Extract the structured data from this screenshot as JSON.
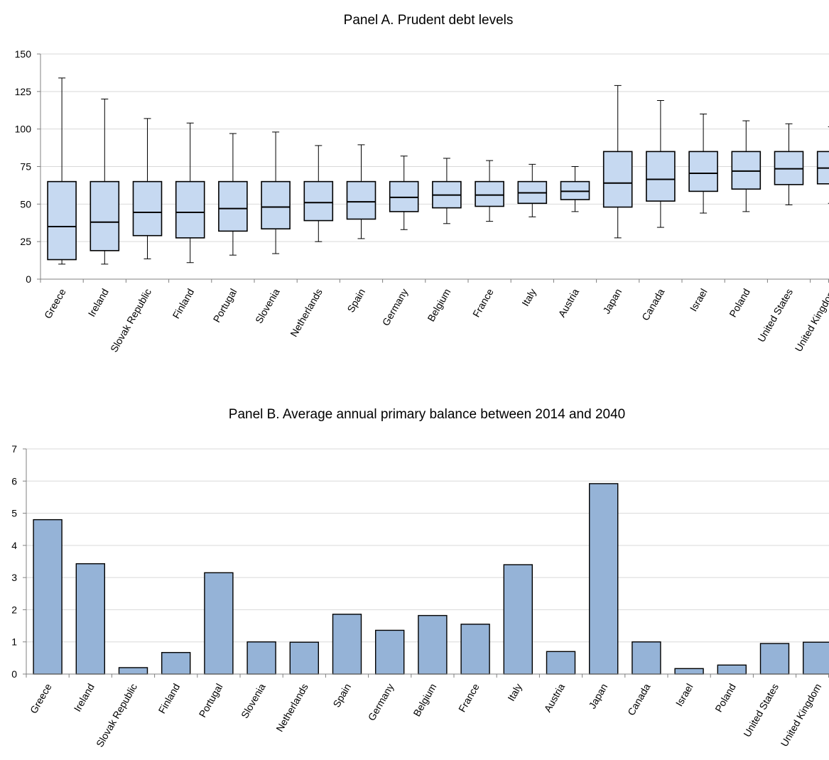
{
  "chart_data": [
    {
      "type": "box",
      "title": "Panel A.  Prudent debt levels",
      "xlabel": "",
      "ylabel": "",
      "ylim": [
        0,
        150
      ],
      "yticks": [
        0,
        25,
        50,
        75,
        100,
        125,
        150
      ],
      "grid": true,
      "categories": [
        "Greece",
        "Ireland",
        "Slovak Republic",
        "Finland",
        "Portugal",
        "Slovenia",
        "Netherlands",
        "Spain",
        "Germany",
        "Belgium",
        "France",
        "Italy",
        "Austria",
        "Japan",
        "Canada",
        "Israel",
        "Poland",
        "United States",
        "United Kingdom"
      ],
      "boxes": [
        {
          "min": 10,
          "q1": 13,
          "median": 35,
          "q3": 65,
          "max": 134
        },
        {
          "min": 10,
          "q1": 19,
          "median": 38,
          "q3": 65,
          "max": 120
        },
        {
          "min": 13.5,
          "q1": 29,
          "median": 44.5,
          "q3": 65,
          "max": 107
        },
        {
          "min": 11,
          "q1": 27.5,
          "median": 44.5,
          "q3": 65,
          "max": 104
        },
        {
          "min": 16,
          "q1": 32,
          "median": 47,
          "q3": 65,
          "max": 97
        },
        {
          "min": 17,
          "q1": 33.5,
          "median": 48,
          "q3": 65,
          "max": 98
        },
        {
          "min": 25,
          "q1": 39,
          "median": 51,
          "q3": 65,
          "max": 89
        },
        {
          "min": 27,
          "q1": 40,
          "median": 51.5,
          "q3": 65,
          "max": 89.5
        },
        {
          "min": 33,
          "q1": 45,
          "median": 54.5,
          "q3": 65,
          "max": 82
        },
        {
          "min": 37,
          "q1": 47.5,
          "median": 56,
          "q3": 65,
          "max": 80.5
        },
        {
          "min": 38.5,
          "q1": 48.5,
          "median": 56,
          "q3": 65,
          "max": 79
        },
        {
          "min": 41.5,
          "q1": 50.5,
          "median": 57.5,
          "q3": 65,
          "max": 76.5
        },
        {
          "min": 45,
          "q1": 53,
          "median": 58.5,
          "q3": 65,
          "max": 75
        },
        {
          "min": 27.5,
          "q1": 48,
          "median": 64,
          "q3": 85,
          "max": 129
        },
        {
          "min": 34.5,
          "q1": 52,
          "median": 66.5,
          "q3": 85,
          "max": 119
        },
        {
          "min": 44,
          "q1": 58.5,
          "median": 70.5,
          "q3": 85,
          "max": 110
        },
        {
          "min": 45,
          "q1": 60,
          "median": 72,
          "q3": 85,
          "max": 105.5
        },
        {
          "min": 49.5,
          "q1": 63,
          "median": 73.5,
          "q3": 85,
          "max": 103.5
        },
        {
          "min": 50.5,
          "q1": 63.5,
          "median": 74,
          "q3": 85,
          "max": 101.5
        }
      ],
      "colors": {
        "box_fill": "#c6d9f1",
        "stroke": "#000000",
        "grid": "#d9d9d9",
        "axis": "#808080"
      }
    },
    {
      "type": "bar",
      "title": "Panel B. Average annual primary balance between 2014 and 2040",
      "xlabel": "",
      "ylabel": "",
      "ylim": [
        0,
        7
      ],
      "yticks": [
        0,
        1,
        2,
        3,
        4,
        5,
        6,
        7
      ],
      "grid": true,
      "categories": [
        "Greece",
        "Ireland",
        "Slovak Republic",
        "Finland",
        "Portugal",
        "Slovenia",
        "Netherlands",
        "Spain",
        "Germany",
        "Belgium",
        "France",
        "Italy",
        "Austria",
        "Japan",
        "Canada",
        "Israel",
        "Poland",
        "United States",
        "United Kingdom"
      ],
      "values": [
        4.8,
        3.43,
        0.2,
        0.67,
        3.15,
        1.0,
        0.99,
        1.86,
        1.36,
        1.82,
        1.55,
        3.4,
        0.7,
        5.92,
        1.0,
        0.17,
        0.28,
        0.95,
        0.99
      ],
      "colors": {
        "bar_fill": "#95b3d7",
        "stroke": "#000000",
        "grid": "#d9d9d9",
        "axis": "#808080"
      }
    }
  ]
}
